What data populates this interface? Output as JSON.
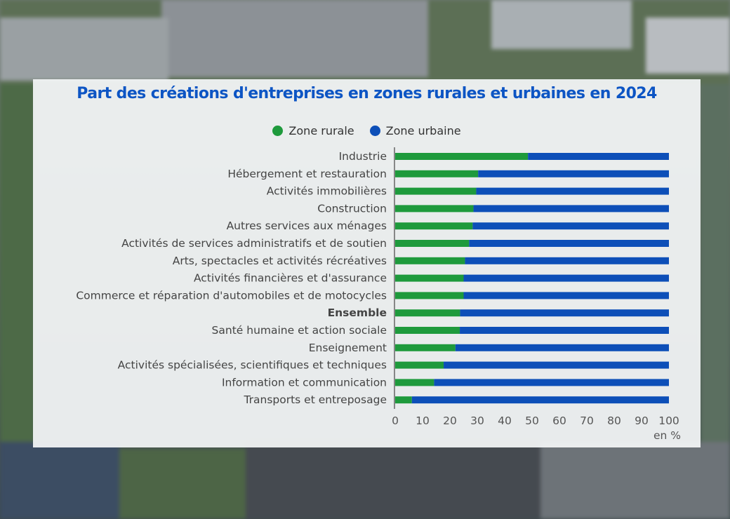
{
  "colors": {
    "rural": "#1e9a3c",
    "urban": "#0d4fb8",
    "title": "#0d55c4"
  },
  "chart_data": {
    "type": "bar",
    "orientation": "horizontal",
    "stacked": true,
    "title": "Part des créations d'entreprises en zones rurales et urbaines en 2024",
    "xlabel": "en %",
    "xlim": [
      0,
      100
    ],
    "xticks": [
      0,
      10,
      20,
      30,
      40,
      50,
      60,
      70,
      80,
      90,
      100
    ],
    "legend_position": "top",
    "grid": false,
    "categories": [
      "Industrie",
      "Hébergement et restauration",
      "Activités immobilières",
      "Construction",
      "Autres services aux ménages",
      "Activités de services administratifs et de soutien",
      "Arts, spectacles et activités récréatives",
      "Activités financières et d'assurance",
      "Commerce et réparation d'automobiles et de motocycles",
      "Ensemble",
      "Santé humaine et action sociale",
      "Enseignement",
      "Activités spécialisées, scientifiques et techniques",
      "Information et communication",
      "Transports et entreposage"
    ],
    "bold_categories": [
      "Ensemble"
    ],
    "series": [
      {
        "name": "Zone rurale",
        "values": [
          48.5,
          30.3,
          29.6,
          28.6,
          28.3,
          27.0,
          25.5,
          25.0,
          25.0,
          23.7,
          23.6,
          22.0,
          17.7,
          14.2,
          6.1
        ]
      },
      {
        "name": "Zone urbaine",
        "values": [
          51.5,
          69.7,
          70.4,
          71.4,
          71.7,
          73.0,
          74.5,
          75.0,
          75.0,
          76.3,
          76.4,
          78.0,
          82.3,
          85.8,
          93.9
        ]
      }
    ]
  }
}
